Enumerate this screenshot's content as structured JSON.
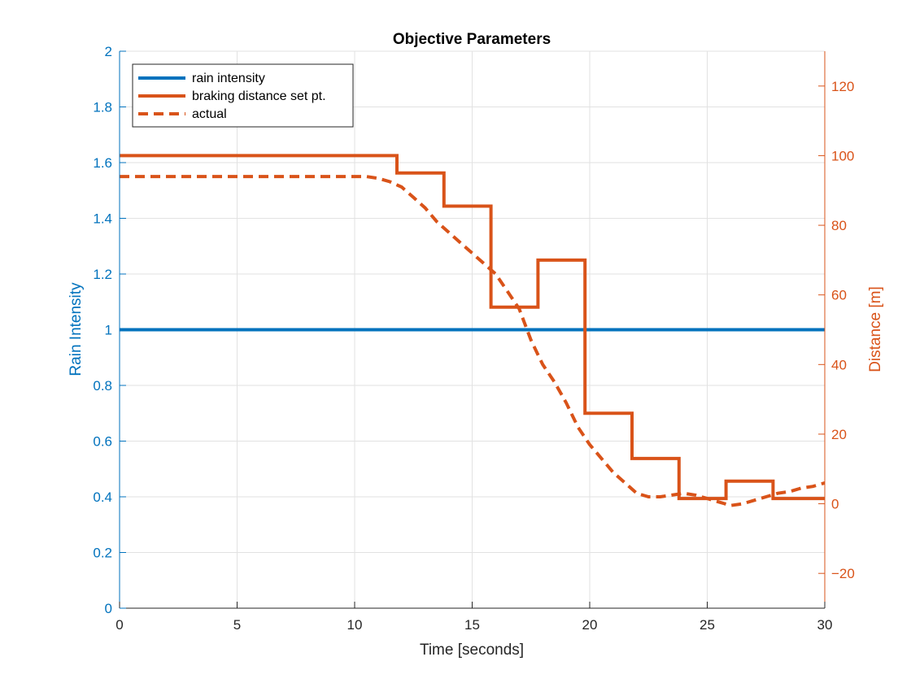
{
  "chart_data": {
    "type": "line",
    "title": "Objective Parameters",
    "xlabel": "Time [seconds]",
    "ylabel_left": "Rain Intensity",
    "ylabel_right": "Distance [m]",
    "xlim": [
      0,
      30
    ],
    "ylim_left": [
      0,
      2
    ],
    "ylim_right": [
      -30,
      130
    ],
    "x_ticks": [
      0,
      5,
      10,
      15,
      20,
      25,
      30
    ],
    "y_left_ticks": [
      0,
      0.2,
      0.4,
      0.6,
      0.8,
      1,
      1.2,
      1.4,
      1.6,
      1.8,
      2
    ],
    "y_right_ticks": [
      -20,
      0,
      20,
      40,
      60,
      80,
      100,
      120
    ],
    "grid": true,
    "legend_position": "top-left",
    "colors": {
      "rain": "#0072BD",
      "distance": "#D95319"
    },
    "series": [
      {
        "name": "rain intensity",
        "axis": "left",
        "style": "solid",
        "x": [
          0,
          30
        ],
        "y": [
          1,
          1
        ]
      },
      {
        "name": "braking distance set pt.",
        "axis": "right",
        "style": "solid-step",
        "x": [
          0,
          11.8,
          11.8,
          13.8,
          13.8,
          15.8,
          15.8,
          17.8,
          17.8,
          19.8,
          19.8,
          21.8,
          21.8,
          23.8,
          23.8,
          25.8,
          25.8,
          27.8,
          27.8,
          30
        ],
        "y": [
          100,
          100,
          95,
          95,
          85.5,
          85.5,
          56.5,
          56.5,
          70,
          70,
          26,
          26,
          13,
          13,
          1.5,
          1.5,
          6.5,
          6.5,
          1.5,
          1.5
        ]
      },
      {
        "name": "actual",
        "axis": "right",
        "style": "dashed",
        "x": [
          0,
          10,
          10.5,
          11,
          11.5,
          12,
          12.5,
          13,
          13.5,
          14,
          14.5,
          15,
          15.5,
          16,
          16.5,
          17,
          17.5,
          18,
          18.5,
          19,
          19.5,
          20,
          20.5,
          21,
          21.5,
          22,
          22.5,
          23,
          23.5,
          24,
          24.5,
          25,
          25.5,
          26,
          26.5,
          27,
          27.5,
          28,
          28.5,
          29,
          29.5,
          30
        ],
        "y": [
          94,
          94,
          94,
          93.5,
          92.5,
          91,
          88,
          85,
          81,
          78,
          75,
          72,
          69,
          66,
          61,
          56,
          47,
          40,
          35,
          29,
          22,
          17,
          13,
          9,
          6,
          3,
          2,
          2,
          2.5,
          3,
          2.5,
          1.5,
          0.5,
          -0.5,
          0,
          1,
          2,
          3,
          3.5,
          4.5,
          5,
          6
        ]
      }
    ]
  }
}
